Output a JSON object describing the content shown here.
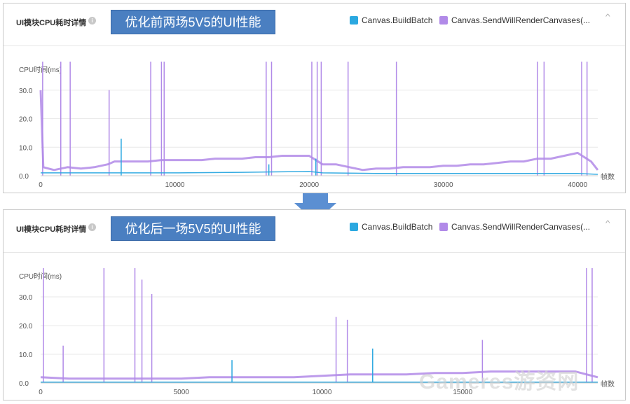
{
  "panels": [
    {
      "title": "UI模块CPU耗时详情",
      "info_icon": "i",
      "banner": "优化前两场5V5的UI性能",
      "legend": [
        "Canvas.BuildBatch",
        "Canvas.SendWillRenderCanvases(..."
      ],
      "collapse_icon": "^"
    },
    {
      "title": "UI模块CPU耗时详情",
      "info_icon": "i",
      "banner": "优化后一场5V5的UI性能",
      "legend": [
        "Canvas.BuildBatch",
        "Canvas.SendWillRenderCanvases(..."
      ],
      "collapse_icon": "^"
    }
  ],
  "watermark": "Gameres游资网",
  "colors": {
    "build_batch": "#2ba8e0",
    "send_will_render": "#b18ae8",
    "arrow": "#5b8fd2",
    "banner": "#4a7fc1"
  },
  "chart_data": [
    {
      "type": "line",
      "ylabel": "CPU时间(ms)",
      "xlabel": "帧数",
      "xlim": [
        0,
        41500
      ],
      "ylim": [
        0,
        40
      ],
      "x_ticks": [
        0,
        10000,
        20000,
        30000,
        40000
      ],
      "x_tick_labels": [
        "0",
        "10000",
        "20000",
        "30000",
        "40000"
      ],
      "y_ticks": [
        0,
        10,
        20,
        30
      ],
      "y_tick_labels": [
        "0.0",
        "10.0",
        "20.0",
        "30.0"
      ],
      "grid": true,
      "legend_position": "top-right",
      "series": [
        {
          "name": "Canvas.SendWillRenderCanvases(...",
          "points": [
            [
              0,
              30
            ],
            [
              200,
              3
            ],
            [
              1000,
              2
            ],
            [
              2000,
              3
            ],
            [
              3000,
              2.5
            ],
            [
              4000,
              3
            ],
            [
              5000,
              4
            ],
            [
              5500,
              5
            ],
            [
              6000,
              5
            ],
            [
              7000,
              5
            ],
            [
              8000,
              5
            ],
            [
              9000,
              5.5
            ],
            [
              10000,
              5.5
            ],
            [
              11000,
              5.5
            ],
            [
              12000,
              5.5
            ],
            [
              13000,
              6
            ],
            [
              14000,
              6
            ],
            [
              15000,
              6
            ],
            [
              16000,
              6.5
            ],
            [
              17000,
              6.5
            ],
            [
              18000,
              7
            ],
            [
              19000,
              7
            ],
            [
              20000,
              7
            ],
            [
              21000,
              4
            ],
            [
              22000,
              4
            ],
            [
              23000,
              3
            ],
            [
              24000,
              2
            ],
            [
              25000,
              2.5
            ],
            [
              26000,
              2.5
            ],
            [
              27000,
              3
            ],
            [
              28000,
              3
            ],
            [
              29000,
              3
            ],
            [
              30000,
              3.5
            ],
            [
              31000,
              3.5
            ],
            [
              32000,
              4
            ],
            [
              33000,
              4
            ],
            [
              34000,
              4.5
            ],
            [
              35000,
              5
            ],
            [
              36000,
              5
            ],
            [
              37000,
              6
            ],
            [
              38000,
              6
            ],
            [
              39000,
              7
            ],
            [
              40000,
              8
            ],
            [
              41000,
              5
            ],
            [
              41500,
              2
            ]
          ],
          "spikes": [
            [
              150,
              40
            ],
            [
              1500,
              40
            ],
            [
              2200,
              40
            ],
            [
              5100,
              30
            ],
            [
              8200,
              40
            ],
            [
              9000,
              40
            ],
            [
              9200,
              40
            ],
            [
              16800,
              40
            ],
            [
              17200,
              40
            ],
            [
              20200,
              40
            ],
            [
              20600,
              40
            ],
            [
              20900,
              40
            ],
            [
              22900,
              40
            ],
            [
              26500,
              40
            ],
            [
              37000,
              40
            ],
            [
              37500,
              40
            ],
            [
              40300,
              40
            ],
            [
              40700,
              40
            ]
          ]
        },
        {
          "name": "Canvas.BuildBatch",
          "points": [
            [
              0,
              1
            ],
            [
              5000,
              1
            ],
            [
              10000,
              1
            ],
            [
              15000,
              1.2
            ],
            [
              20000,
              1.5
            ],
            [
              21000,
              1
            ],
            [
              25000,
              0.8
            ],
            [
              30000,
              0.8
            ],
            [
              35000,
              0.8
            ],
            [
              40000,
              0.8
            ],
            [
              41500,
              0.5
            ]
          ],
          "spikes": [
            [
              6000,
              13
            ],
            [
              20500,
              6
            ],
            [
              17000,
              4
            ]
          ]
        }
      ]
    },
    {
      "type": "line",
      "ylabel": "CPU时间(ms)",
      "xlabel": "帧数",
      "xlim": [
        0,
        19800
      ],
      "ylim": [
        0,
        40
      ],
      "x_ticks": [
        0,
        5000,
        10000,
        15000
      ],
      "x_tick_labels": [
        "0",
        "5000",
        "10000",
        "15000"
      ],
      "y_ticks": [
        0,
        10,
        20,
        30
      ],
      "y_tick_labels": [
        "0.0",
        "10.0",
        "20.0",
        "30.0"
      ],
      "grid": true,
      "legend_position": "top-right",
      "series": [
        {
          "name": "Canvas.SendWillRenderCanvases(...",
          "points": [
            [
              0,
              2
            ],
            [
              1000,
              1.5
            ],
            [
              2000,
              1.5
            ],
            [
              3000,
              1.5
            ],
            [
              4000,
              1.5
            ],
            [
              5000,
              1.5
            ],
            [
              6000,
              2
            ],
            [
              7000,
              2
            ],
            [
              8000,
              2
            ],
            [
              9000,
              2
            ],
            [
              10000,
              2.5
            ],
            [
              11000,
              3
            ],
            [
              12000,
              3
            ],
            [
              13000,
              3
            ],
            [
              14000,
              3.5
            ],
            [
              15000,
              3.5
            ],
            [
              16000,
              4
            ],
            [
              17000,
              4
            ],
            [
              18000,
              4
            ],
            [
              19000,
              4
            ],
            [
              19800,
              2
            ]
          ],
          "spikes": [
            [
              100,
              40
            ],
            [
              800,
              13
            ],
            [
              2250,
              40
            ],
            [
              3350,
              40
            ],
            [
              3600,
              36
            ],
            [
              3950,
              31
            ],
            [
              10500,
              23
            ],
            [
              10900,
              22
            ],
            [
              15700,
              15
            ],
            [
              19400,
              40
            ],
            [
              19600,
              40
            ]
          ]
        },
        {
          "name": "Canvas.BuildBatch",
          "points": [
            [
              0,
              0.3
            ],
            [
              5000,
              0.3
            ],
            [
              10000,
              0.3
            ],
            [
              15000,
              0.3
            ],
            [
              19800,
              0.3
            ]
          ],
          "spikes": [
            [
              6800,
              8
            ],
            [
              11800,
              12
            ]
          ]
        }
      ]
    }
  ]
}
